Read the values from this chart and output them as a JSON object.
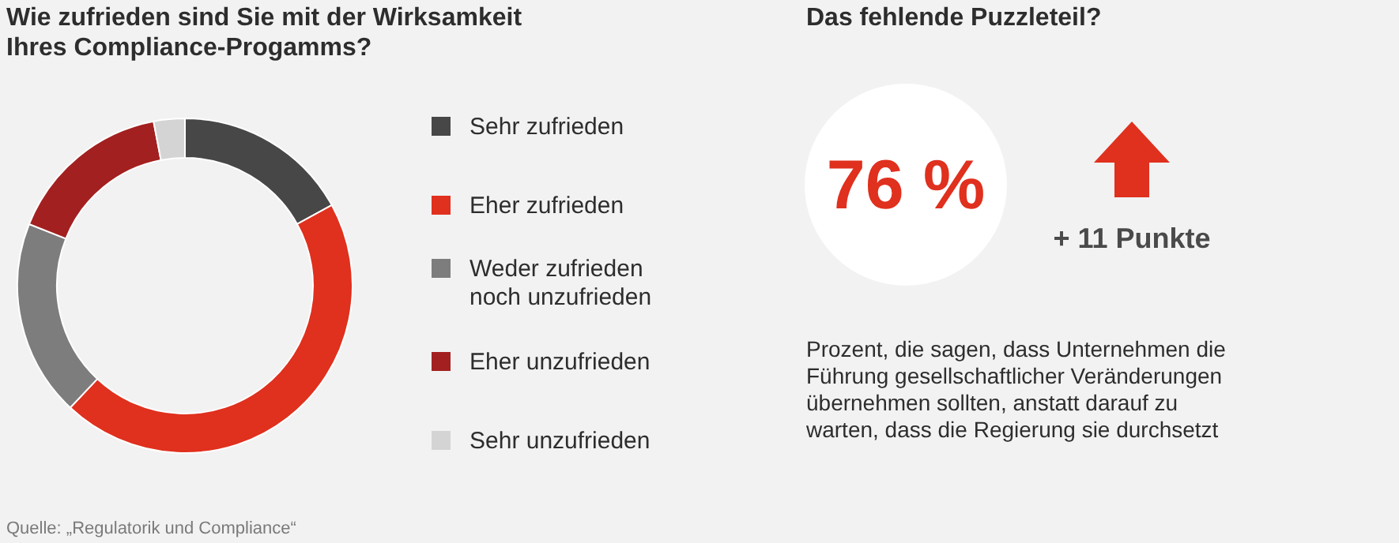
{
  "chart_data": [
    {
      "type": "donut",
      "title": "Wie zufrieden sind Sie mit der Wirksamkeit Ihres Compliance-Progamms?",
      "categories": [
        "Sehr zufrieden",
        "Eher zufrieden",
        "Weder zufrieden noch unzufrieden",
        "Eher unzufrieden",
        "Sehr unzufrieden"
      ],
      "values": [
        17,
        45,
        19,
        16,
        3
      ],
      "colors": [
        "#474747",
        "#e0301e",
        "#7d7d7d",
        "#a32020",
        "#d4d4d4"
      ],
      "legend": "right",
      "annotations": [
        "Quelle: „Regulatorik und Compliance“"
      ]
    },
    {
      "type": "other",
      "title": "Das fehlende Puzzleteil?",
      "annotations": [
        "76 %",
        "+ 11 Punkte",
        "Prozent, die sagen, dass Unternehmen die Führung gesellschaftlicher Veränderungen übernehmen sollten, anstatt darauf zu warten, dass die Regierung sie durchsetzt"
      ]
    }
  ]
}
